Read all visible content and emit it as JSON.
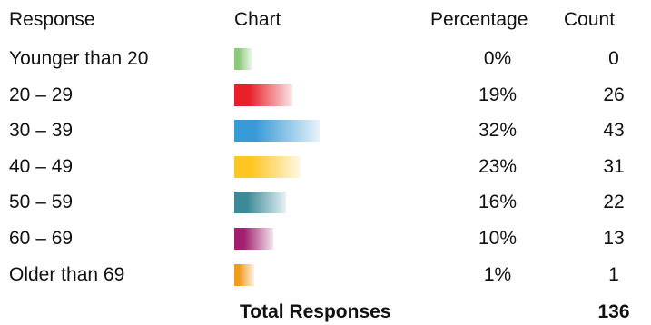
{
  "headers": {
    "response": "Response",
    "chart": "Chart",
    "percentage": "Percentage",
    "count": "Count"
  },
  "chart_data": {
    "type": "bar",
    "orientation": "horizontal",
    "categories": [
      "Younger than 20",
      "20 – 29",
      "30 – 39",
      "40 – 49",
      "50 – 59",
      "60 – 69",
      "Older than 69"
    ],
    "series": [
      {
        "values": [
          0,
          19,
          32,
          23,
          16,
          10,
          1
        ],
        "value_labels": [
          "0%",
          "19%",
          "32%",
          "23%",
          "16%",
          "10%",
          "1%"
        ],
        "counts": [
          0,
          26,
          43,
          31,
          22,
          13,
          1
        ],
        "count_labels": [
          "0",
          "26",
          "43",
          "31",
          "22",
          "13",
          "1"
        ],
        "colors": [
          "#8cc97a",
          "#e8202a",
          "#3a9ad7",
          "#ffc520",
          "#3a8a98",
          "#a2206f",
          "#f39a1e"
        ]
      }
    ],
    "xlim": [
      0,
      100
    ]
  },
  "total": {
    "label": "Total Responses",
    "value": "136"
  }
}
